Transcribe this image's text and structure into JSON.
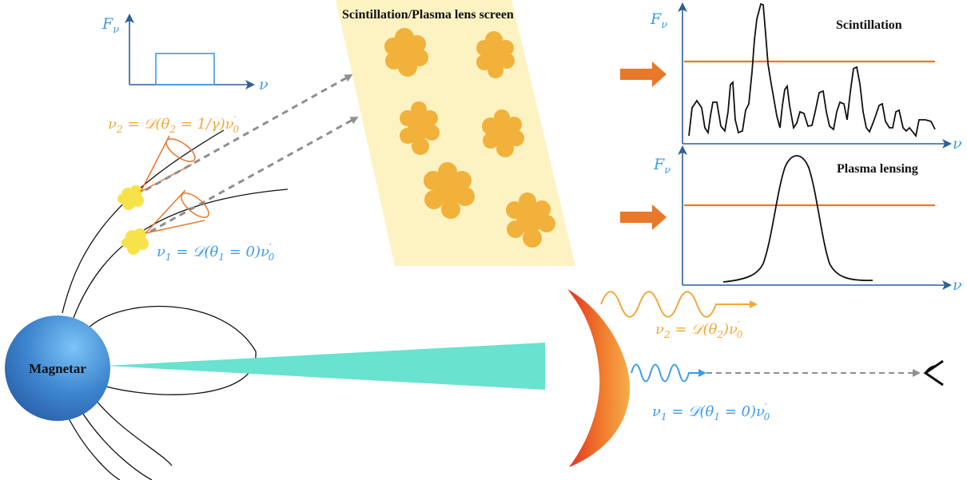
{
  "title": "Scintillation/Plasma lens screen",
  "star_label": "Magnetar",
  "spectrum_axis": {
    "y_label": "F",
    "y_sub": "ν",
    "x_label": "ν"
  },
  "emission_labels": {
    "nu2": {
      "main": "ν",
      "sub": "2",
      "expr": " = 𝒟(θ",
      "sub2": "2",
      "expr2": " = 1/γ)ν",
      "prime_sup": "′",
      "prime_sub": "0"
    },
    "nu1": {
      "main": "ν",
      "sub": "1",
      "expr": " = 𝒟(θ",
      "sub2": "1",
      "expr2": " = 0)ν",
      "prime_sup": "′",
      "prime_sub": "0"
    }
  },
  "panels": {
    "top": {
      "title": "Scintillation",
      "y_label": "F",
      "y_sub": "ν",
      "x_label": "ν"
    },
    "bottom": {
      "title": "Plasma lensing",
      "y_label": "F",
      "y_sub": "ν",
      "x_label": "ν"
    }
  },
  "shock_labels": {
    "nu2": {
      "main": "ν",
      "sub": "2",
      "expr": " = 𝒟(θ",
      "sub2": "2",
      "expr2": ")ν",
      "prime_sup": "′",
      "prime_sub": "0"
    },
    "nu1": {
      "main": "ν",
      "sub": "1",
      "expr": " = 𝒟(θ",
      "sub2": "1",
      "expr2": " = 0)ν",
      "prime_sup": "′",
      "prime_sub": "0"
    }
  },
  "colors": {
    "blue": "#3d9be9",
    "orange": "#f0a93a",
    "dark_orange": "#e8782a",
    "screen": "#fdf3c2",
    "cloud": "#f2b13b",
    "beam": "#69e2cf",
    "yellow_blob": "#f8e24a",
    "gray_arrow": "#8f8f8f"
  },
  "icons": [
    "eye-icon",
    "arrow-icon",
    "cloud-icon",
    "cone-icon"
  ]
}
